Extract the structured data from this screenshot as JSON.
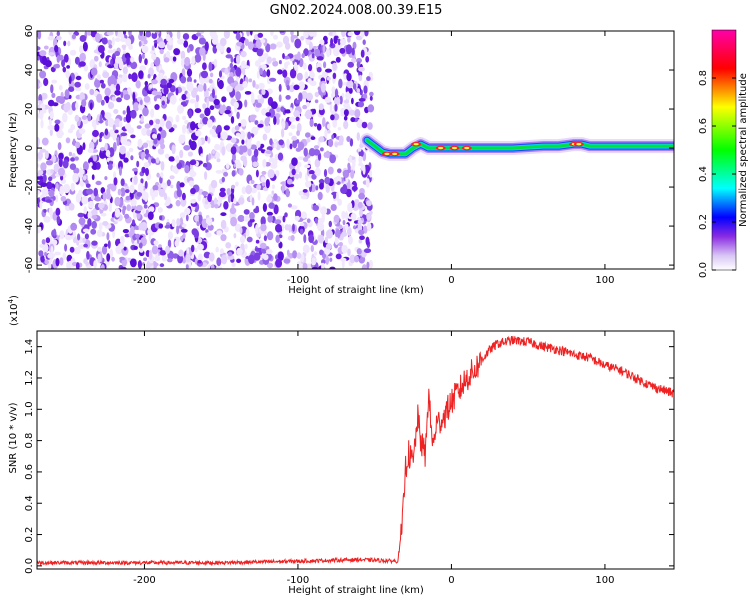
{
  "title": "GN02.2024.008.00.39.E15",
  "chart_data": [
    {
      "type": "heatmap",
      "xlabel": "Height of straight line (km)",
      "ylabel": "Frequency (Hz)",
      "xlim": [
        -270,
        145
      ],
      "ylim": [
        -62,
        60
      ],
      "xticks": [
        -200,
        -100,
        0,
        100
      ],
      "xtick_labels": [
        "-200",
        "-100",
        "0",
        "100"
      ],
      "yticks": [
        -60,
        -40,
        -20,
        0,
        20,
        40,
        60
      ],
      "ytick_labels": [
        "-60",
        "-40",
        "-20",
        "0",
        "20",
        "40",
        "60"
      ],
      "colorbar": {
        "label": "Normalized spectral amplitude",
        "range": [
          0,
          1
        ],
        "ticks": [
          0.0,
          0.2,
          0.4,
          0.6,
          0.8
        ],
        "tick_labels": [
          "0.0",
          "0.2",
          "0.4",
          "0.6",
          "0.8"
        ],
        "colors": [
          "#ffffff",
          "#8a2be2",
          "#0000ff",
          "#00ffff",
          "#00ff00",
          "#ffff00",
          "#ff0000",
          "#ff00aa"
        ]
      },
      "noise_region_x": [
        -270,
        -52
      ],
      "signal_track": {
        "x": [
          -55,
          -50,
          -45,
          -40,
          -30,
          -25,
          -20,
          -15,
          -10,
          0,
          10,
          20,
          40,
          60,
          70,
          80,
          85,
          90,
          100,
          120,
          145
        ],
        "y": [
          4,
          1,
          -2,
          -3,
          -3,
          0,
          2,
          0,
          0,
          0,
          0,
          0,
          0,
          1,
          1,
          2,
          2,
          1,
          1,
          1,
          1
        ]
      }
    },
    {
      "type": "line",
      "xlabel": "Height of straight line (km)",
      "ylabel": "SNR (10 * v/v)",
      "multiplier_label": "(x10",
      "multiplier_exp": "4",
      "multiplier_close": ")",
      "xlim": [
        -270,
        145
      ],
      "ylim": [
        -0.02,
        1.5
      ],
      "xticks": [
        -200,
        -100,
        0,
        100
      ],
      "xtick_labels": [
        "-200",
        "-100",
        "0",
        "100"
      ],
      "yticks": [
        0.0,
        0.2,
        0.4,
        0.6,
        0.8,
        1.0,
        1.2,
        1.4
      ],
      "ytick_labels": [
        "0.0",
        "0.2",
        "0.4",
        "0.6",
        "0.8",
        "1.0",
        "1.2",
        "1.4"
      ],
      "line_color": "#ee2222",
      "series": [
        {
          "x": [
            -270,
            -200,
            -150,
            -100,
            -60,
            -35,
            -32,
            -30,
            -28,
            -25,
            -22,
            -20,
            -17,
            -15,
            -12,
            -10,
            -5,
            0,
            5,
            10,
            15,
            20,
            25,
            30,
            40,
            50,
            60,
            70,
            80,
            90,
            100,
            110,
            120,
            130,
            145
          ],
          "values": [
            0.02,
            0.02,
            0.02,
            0.03,
            0.04,
            0.03,
            0.25,
            0.62,
            0.72,
            0.65,
            0.95,
            0.8,
            0.7,
            1.1,
            0.75,
            0.9,
            0.95,
            1.05,
            1.12,
            1.2,
            1.25,
            1.32,
            1.38,
            1.42,
            1.44,
            1.43,
            1.4,
            1.38,
            1.35,
            1.33,
            1.28,
            1.25,
            1.2,
            1.15,
            1.1
          ]
        }
      ]
    }
  ]
}
